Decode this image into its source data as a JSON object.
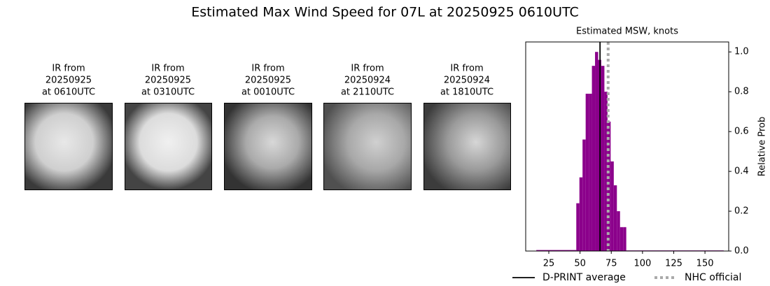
{
  "title": "Estimated Max Wind Speed for 07L at 20250925 0610UTC",
  "panels": [
    {
      "lines": [
        "IR from",
        "20250925",
        "at 0610UTC"
      ]
    },
    {
      "lines": [
        "IR from",
        "20250925",
        "at 0310UTC"
      ]
    },
    {
      "lines": [
        "IR from",
        "20250925",
        "at 0010UTC"
      ]
    },
    {
      "lines": [
        "IR from",
        "20250924",
        "at 2110UTC"
      ]
    },
    {
      "lines": [
        "IR from",
        "20250924",
        "at 1810UTC"
      ]
    }
  ],
  "chart_data": {
    "type": "histogram",
    "title": "Estimated MSW, knots",
    "ylabel": "Relative Prob",
    "bins": [
      15,
      47,
      49.5,
      52,
      54.5,
      57,
      59.5,
      62,
      64.5,
      67,
      69.5,
      72,
      74.5,
      77,
      79.5,
      82,
      84.5,
      87,
      165
    ],
    "values": [
      0.005,
      0.24,
      0.37,
      0.56,
      0.79,
      0.79,
      0.93,
      1.0,
      0.96,
      0.93,
      0.8,
      0.65,
      0.45,
      0.33,
      0.2,
      0.12,
      0.12,
      0.003
    ],
    "color": "#8b008b",
    "xlim": [
      6.5,
      169
    ],
    "xticks": [
      25,
      50,
      75,
      100,
      125,
      150
    ],
    "ylim": [
      0,
      1.05
    ],
    "yticks": [
      {
        "value": 0,
        "label": "0.0"
      },
      {
        "value": 0.2,
        "label": "0.2"
      },
      {
        "value": 0.4,
        "label": "0.4"
      },
      {
        "value": 0.6,
        "label": "0.6"
      },
      {
        "value": 0.8,
        "label": "0.8"
      },
      {
        "value": 1.0,
        "label": "1.0"
      }
    ],
    "yaxis_side": "right",
    "reference_lines": [
      {
        "name": "D-PRINT average",
        "value": 66,
        "color": "#000000",
        "style": "solid"
      },
      {
        "name": "NHC official",
        "value": 72.5,
        "color": "#aaaaaa",
        "style": "dotted"
      }
    ],
    "legend": "bottom"
  }
}
